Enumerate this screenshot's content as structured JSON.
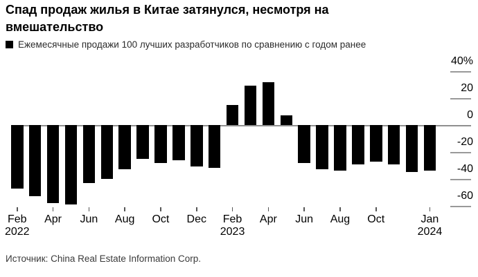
{
  "title": "Спад продаж жилья в Китае затянулся, несмотря на вмешательство",
  "legend": {
    "label": "Ежемесячные продажи 100 лучших разработчиков по сравнению с годом ранее",
    "marker_color": "#000000"
  },
  "source": "Источник: China Real Estate Information Corp.",
  "colors": {
    "bar": "#000000",
    "zero_line": "#8f8f8f",
    "y_tick_dash": "#999999",
    "x_tick": "#555555",
    "text": "#000000"
  },
  "chart_data": {
    "type": "bar",
    "title": "Спад продаж жилья в Китае затянулся, несмотря на вмешательство",
    "legend_entry": "Ежемесячные продажи 100 лучших разработчиков по сравнению с годом ранее",
    "unit": "%",
    "categories": [
      "Feb 2022",
      "Mar 2022",
      "Apr 2022",
      "May 2022",
      "Jun 2022",
      "Jul 2022",
      "Aug 2022",
      "Sep 2022",
      "Oct 2022",
      "Nov 2022",
      "Dec 2022",
      "Jan 2023",
      "Feb 2023",
      "Mar 2023",
      "Apr 2023",
      "May 2023",
      "Jun 2023",
      "Jul 2023",
      "Aug 2023",
      "Sep 2023",
      "Oct 2023",
      "Nov 2023",
      "Dec 2023",
      "Jan 2024"
    ],
    "values": [
      -47,
      -53,
      -58,
      -59,
      -43,
      -40,
      -33,
      -25,
      -28,
      -26,
      -31,
      -32,
      15,
      29,
      32,
      7,
      -28,
      -33,
      -34,
      -29,
      -27,
      -29,
      -35,
      -34
    ],
    "ylim": [
      -70,
      46
    ],
    "grid": false,
    "axis_side": "right",
    "yticks": [
      {
        "value": 40,
        "label": "40%"
      },
      {
        "value": 20,
        "label": "20"
      },
      {
        "value": 0,
        "label": "0"
      },
      {
        "value": -20,
        "label": "-20"
      },
      {
        "value": -40,
        "label": "-40"
      },
      {
        "value": -60,
        "label": "-60"
      }
    ],
    "xticks": [
      {
        "index": 0,
        "line1": "Feb",
        "line2": "2022"
      },
      {
        "index": 2,
        "line1": "Apr",
        "line2": ""
      },
      {
        "index": 4,
        "line1": "Jun",
        "line2": ""
      },
      {
        "index": 6,
        "line1": "Aug",
        "line2": ""
      },
      {
        "index": 8,
        "line1": "Oct",
        "line2": ""
      },
      {
        "index": 10,
        "line1": "Dec",
        "line2": ""
      },
      {
        "index": 12,
        "line1": "Feb",
        "line2": "2023"
      },
      {
        "index": 14,
        "line1": "Apr",
        "line2": ""
      },
      {
        "index": 16,
        "line1": "Jun",
        "line2": ""
      },
      {
        "index": 18,
        "line1": "Aug",
        "line2": ""
      },
      {
        "index": 20,
        "line1": "Oct",
        "line2": ""
      },
      {
        "index": 23,
        "line1": "Jan",
        "line2": "2024"
      }
    ]
  }
}
